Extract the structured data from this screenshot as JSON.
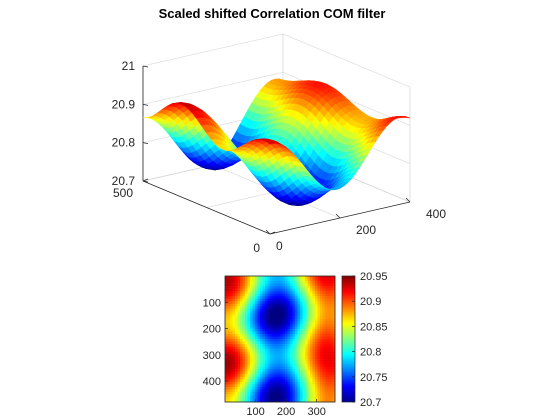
{
  "chart_data": [
    {
      "type": "surface",
      "title": "Scaled shifted Correlation COM filter",
      "colormap": "jet",
      "x_ticks": [
        "0",
        "200",
        "400"
      ],
      "y_ticks": [
        "0",
        "500"
      ],
      "z_ticks": [
        "20.7",
        "20.8",
        "20.9",
        "21"
      ],
      "xlim": [
        0,
        400
      ],
      "ylim": [
        0,
        500
      ],
      "zlim": [
        20.7,
        21
      ],
      "grid": true
    },
    {
      "type": "heatmap",
      "colormap": "jet",
      "x_ticks": [
        "100",
        "200",
        "300"
      ],
      "y_ticks": [
        "100",
        "200",
        "300",
        "400"
      ],
      "xlim": [
        0,
        360
      ],
      "ylim": [
        0,
        480
      ],
      "colorbar": {
        "ticks": [
          "20.95",
          "20.9",
          "20.85",
          "20.8",
          "20.75",
          "20.7"
        ],
        "range": [
          20.7,
          20.95
        ]
      }
    }
  ]
}
